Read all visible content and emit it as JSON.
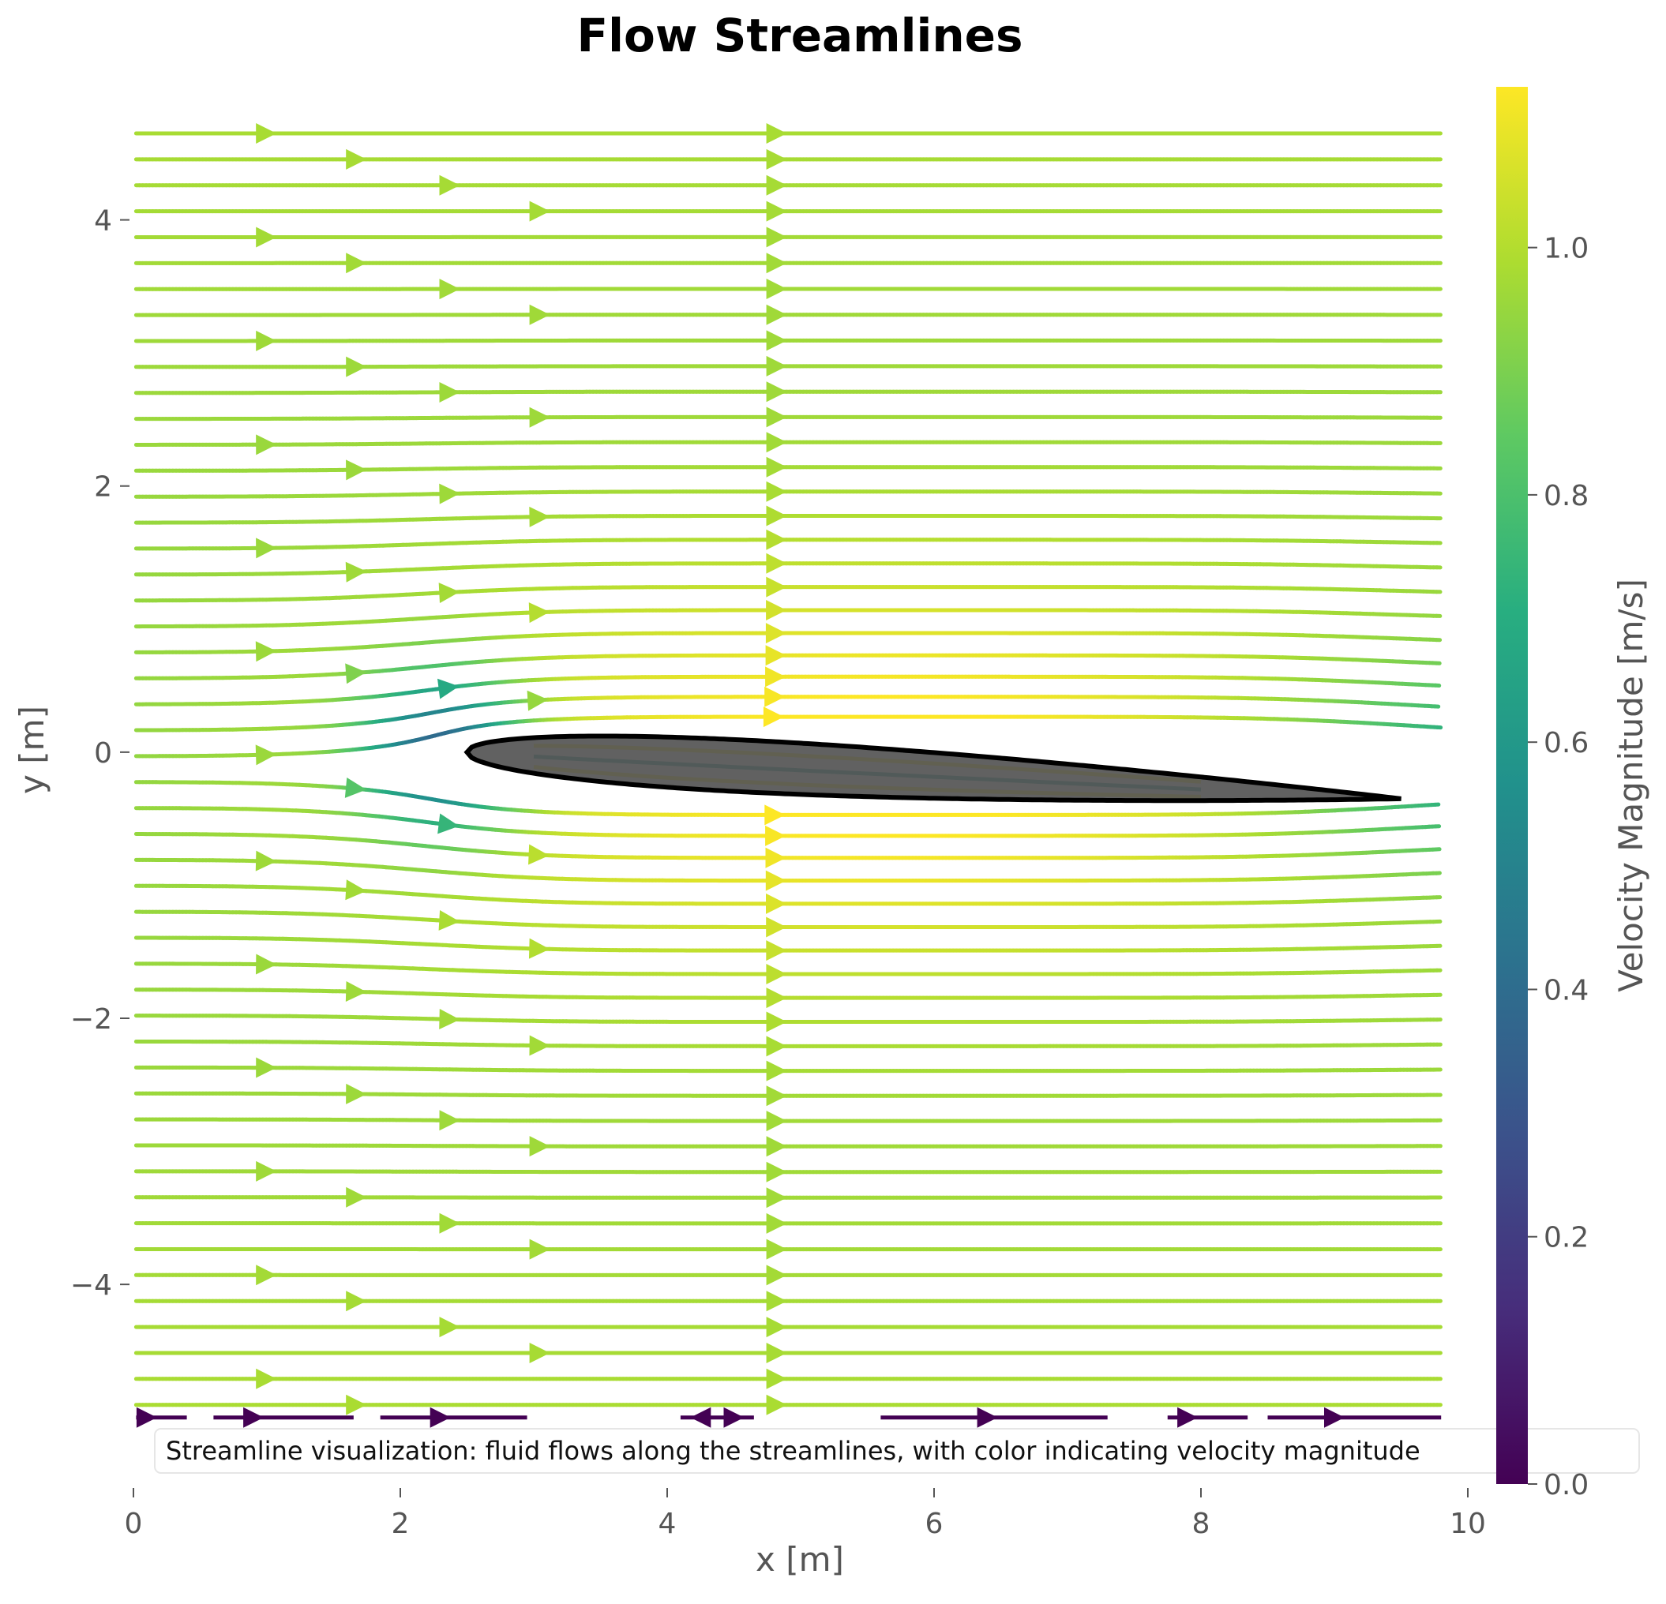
{
  "chart_data": {
    "type": "streamline",
    "title": "Flow Streamlines",
    "xlabel": "x [m]",
    "ylabel": "y [m]",
    "xlim": [
      0,
      10
    ],
    "ylim": [
      -5.5,
      5
    ],
    "xticks": [
      0,
      2,
      4,
      6,
      8,
      10
    ],
    "xtick_labels": [
      "0",
      "2",
      "4",
      "6",
      "8",
      "10"
    ],
    "yticks": [
      -4,
      -2,
      0,
      2,
      4
    ],
    "ytick_labels": [
      "−4",
      "−2",
      "0",
      "2",
      "4"
    ],
    "grid": false,
    "colorbar": {
      "label": "Velocity Magnitude [m/s]",
      "colormap": "viridis",
      "range": [
        0.0,
        1.13
      ],
      "ticks": [
        0.0,
        0.2,
        0.4,
        0.6,
        0.8,
        1.0
      ],
      "tick_labels": [
        "0.0",
        "0.2",
        "0.4",
        "0.6",
        "0.8",
        "1.0"
      ]
    },
    "obstacle": {
      "shape": "airfoil",
      "fill": "#555555",
      "outline": "#000000",
      "leading_edge": [
        2.5,
        0.0
      ],
      "trailing_edge": [
        9.5,
        -0.35
      ],
      "max_upper": 0.45,
      "max_lower": -0.45
    },
    "freestream_speed": 1.0,
    "bottom_row_y": -5.0,
    "annotation": "Streamline visualization: fluid flows along the streamlines, with color indicating velocity magnitude"
  }
}
